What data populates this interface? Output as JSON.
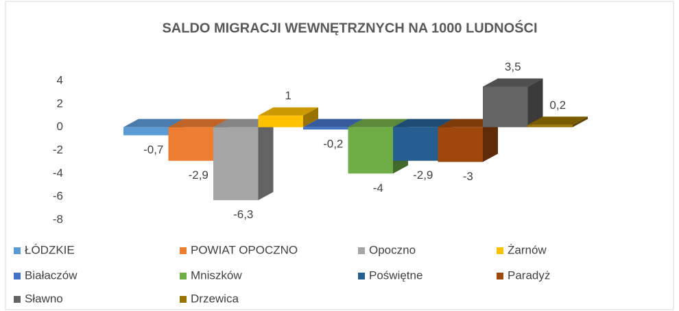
{
  "chart_data": {
    "type": "bar3d",
    "title": "SALDO MIGRACJI WEWNĘTRZNYCH NA 1000 LUDNOŚCI",
    "ylim": [
      -8,
      4
    ],
    "yticks": [
      4,
      2,
      0,
      -2,
      -4,
      -6,
      -8
    ],
    "series": [
      {
        "name": "ŁÓDZKIE",
        "color": "#5b9bd5",
        "values": [
          -0.7
        ],
        "value_labels": [
          "-0,7"
        ]
      },
      {
        "name": "POWIAT OPOCZNO",
        "color": "#ed7d31",
        "values": [
          -2.9
        ],
        "value_labels": [
          "-2,9"
        ]
      },
      {
        "name": "Opoczno",
        "color": "#a5a5a5",
        "values": [
          -6.3
        ],
        "value_labels": [
          "-6,3"
        ]
      },
      {
        "name": "Żarnów",
        "color": "#ffc000",
        "values": [
          1
        ],
        "value_labels": [
          "1"
        ]
      },
      {
        "name": "Białaczów",
        "color": "#4472c4",
        "values": [
          -0.2
        ],
        "value_labels": [
          "-0,2"
        ]
      },
      {
        "name": "Mniszków",
        "color": "#70ad47",
        "values": [
          -4
        ],
        "value_labels": [
          "-4"
        ]
      },
      {
        "name": "Poświętne",
        "color": "#255e91",
        "values": [
          -2.9
        ],
        "value_labels": [
          "-2,9"
        ]
      },
      {
        "name": "Paradyż",
        "color": "#9e480e",
        "values": [
          -3
        ],
        "value_labels": [
          "-3"
        ]
      },
      {
        "name": "Sławno",
        "color": "#636363",
        "values": [
          3.5
        ],
        "value_labels": [
          "3,5"
        ]
      },
      {
        "name": "Drzewica",
        "color": "#997300",
        "values": [
          0.2
        ],
        "value_labels": [
          "0,2"
        ]
      }
    ]
  }
}
